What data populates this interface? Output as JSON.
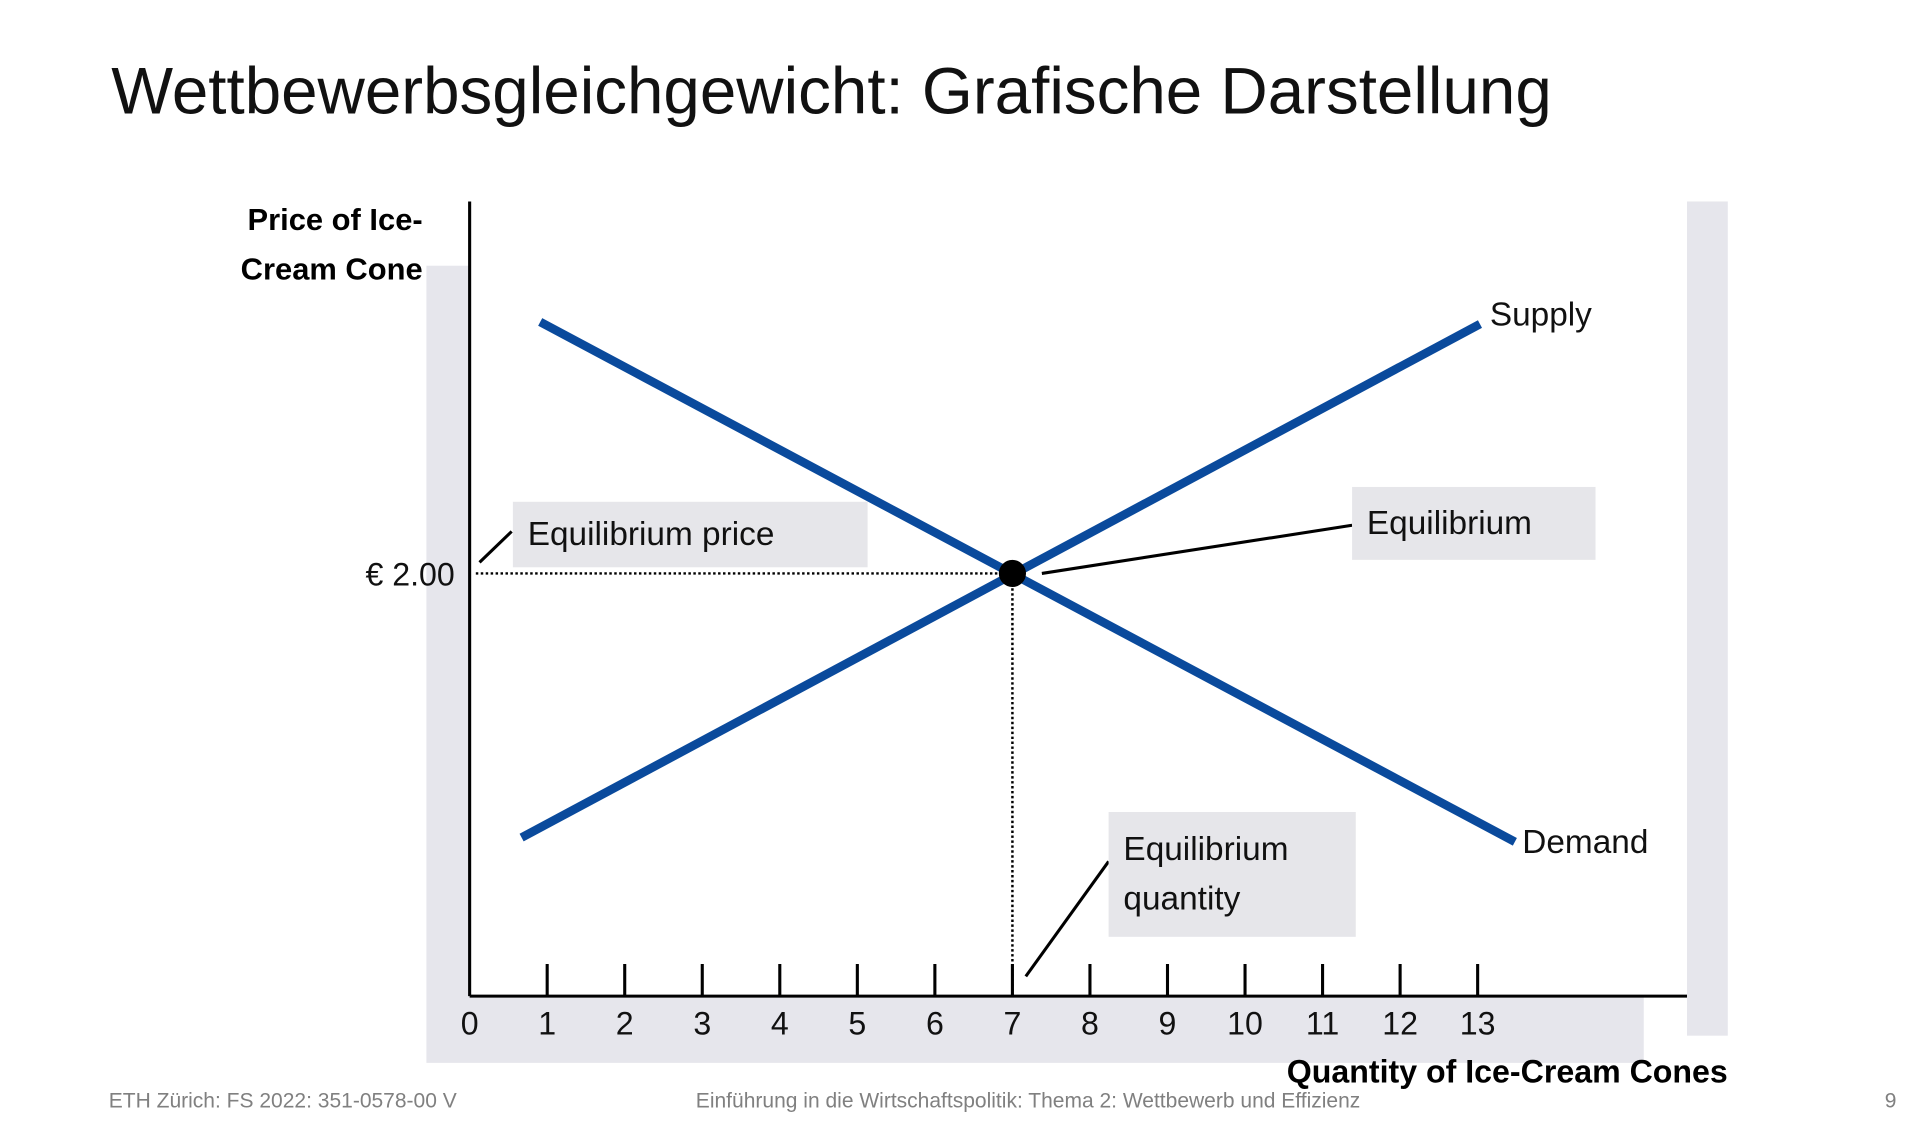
{
  "slide": {
    "title": "Wettbewerbsgleichgewicht: Grafische Darstellung",
    "footer_left": "ETH Zürich: FS 2022: 351-0578-00 V",
    "footer_center": "Einführung in die Wirtschaftspolitik: Thema 2: Wettbewerb und Effizienz",
    "page_number": "9"
  },
  "chart_data": {
    "type": "line",
    "y_label": "Price of Ice-Cream Cone",
    "x_label": "Quantity of Ice-Cream Cones",
    "xlim": [
      0,
      15.7
    ],
    "ylim": [
      0,
      3.76
    ],
    "xticks": [
      0,
      1,
      2,
      3,
      4,
      5,
      6,
      7,
      8,
      9,
      10,
      11,
      12,
      13
    ],
    "yticks": [
      {
        "value": 2,
        "label": "€ 2.00"
      }
    ],
    "series": [
      {
        "name": "Supply",
        "color": "#0a4a9c",
        "x": [
          0.67,
          13.03
        ],
        "values": [
          0.75,
          3.18
        ]
      },
      {
        "name": "Demand",
        "color": "#0a4a9c",
        "x": [
          0.91,
          13.48
        ],
        "values": [
          3.19,
          0.73
        ]
      }
    ],
    "equilibrium": {
      "x": 7,
      "y": 2
    },
    "annotations": [
      "Equilibrium price",
      "Equilibrium",
      "Equilibrium quantity"
    ]
  }
}
